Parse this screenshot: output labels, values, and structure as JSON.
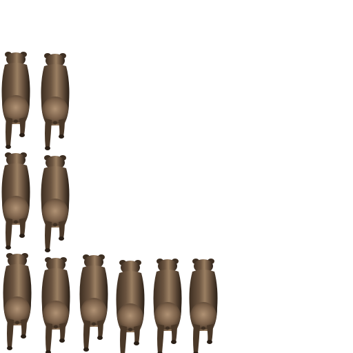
{
  "sprite_sheet": {
    "subject": "bear",
    "view": "back",
    "colors": {
      "background": "#ffffff",
      "fur_dark": "#3e2f22",
      "fur_mid": "#6b5440",
      "fur_light": "#9a7f62",
      "shadow": "#2a1f16"
    },
    "frames": [
      {
        "pose": "walk-a"
      },
      {
        "pose": "walk-b"
      },
      {
        "pose": "walk-c"
      },
      {
        "pose": "walk-d"
      },
      {
        "pose": "idle-1"
      },
      {
        "pose": "idle-2"
      },
      {
        "pose": "idle-3"
      },
      {
        "pose": "idle-4"
      },
      {
        "pose": "idle-5"
      },
      {
        "pose": "idle-6"
      }
    ]
  }
}
